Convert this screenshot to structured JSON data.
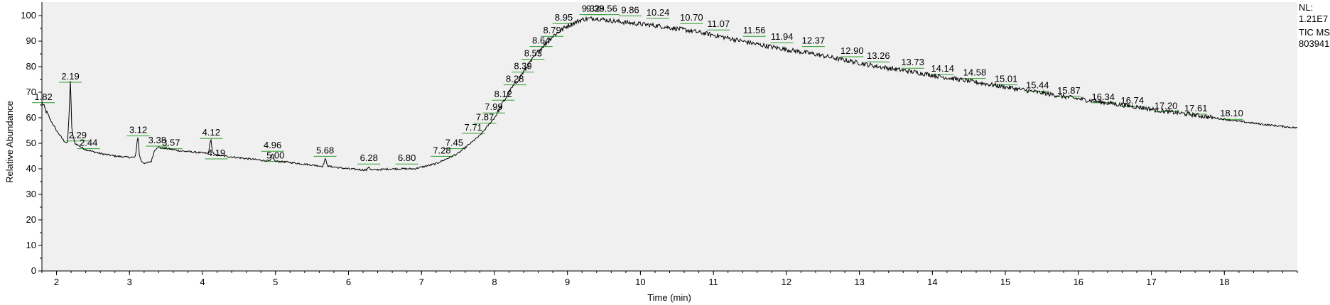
{
  "side_info": {
    "nl_label": "NL:",
    "nl_value": "1.21E7",
    "trace_label": "TIC  MS",
    "file_id": "803941"
  },
  "chart_data": {
    "type": "line",
    "xlabel": "Time (min)",
    "ylabel": "Relative Abundance",
    "xlim": [
      1.8,
      19.0
    ],
    "ylim": [
      0,
      100
    ],
    "x_ticks": [
      2,
      3,
      4,
      5,
      6,
      7,
      8,
      9,
      10,
      11,
      12,
      13,
      14,
      15,
      16,
      17,
      18
    ],
    "y_ticks": [
      0,
      10,
      20,
      30,
      40,
      50,
      60,
      70,
      80,
      90,
      100
    ],
    "grid": false,
    "colors": {
      "trace": "#000000",
      "peak_marker": "#2e9e2e",
      "plot_bg": "#f0f0f0"
    },
    "series": [
      {
        "x": [
          1.8,
          1.9,
          2.0,
          2.1,
          2.15,
          2.17,
          2.19,
          2.21,
          2.25,
          2.4,
          2.6,
          2.8,
          3.0,
          3.08,
          3.11,
          3.12,
          3.13,
          3.16,
          3.22,
          3.3,
          3.34,
          3.38,
          3.5,
          3.7,
          3.9,
          4.08,
          4.11,
          4.12,
          4.13,
          4.16,
          4.3,
          4.6,
          4.93,
          4.96,
          4.99,
          5.2,
          5.5,
          5.65,
          5.68,
          5.72,
          6.0,
          6.25,
          6.28,
          6.31,
          6.6,
          6.9,
          7.2,
          7.5,
          7.8,
          8.0,
          8.2,
          8.4,
          8.6,
          8.8,
          9.0,
          9.2,
          9.38,
          9.6,
          9.9,
          10.24,
          10.7,
          11.07,
          11.56,
          11.94,
          12.37,
          12.9,
          13.26,
          13.73,
          14.14,
          14.58,
          15.01,
          15.44,
          15.87,
          16.34,
          16.74,
          17.2,
          17.61,
          18.1,
          18.5,
          19.0
        ],
        "y": [
          66,
          60,
          55,
          51,
          50,
          60,
          75,
          55,
          50,
          47.5,
          46,
          45,
          44.5,
          44.5,
          52,
          53,
          46,
          43,
          42,
          43,
          47,
          48.5,
          48,
          47,
          46.5,
          46,
          51,
          52,
          47,
          45.5,
          45,
          44,
          43,
          46,
          43,
          42.5,
          41.5,
          41,
          44,
          41,
          40,
          39.5,
          41,
          39.5,
          40,
          40,
          42,
          46,
          53,
          60,
          70,
          78,
          86,
          92,
          96,
          98.5,
          99,
          98,
          97,
          96,
          94,
          92,
          89,
          87,
          85,
          82,
          80,
          78,
          76,
          74,
          72,
          70,
          68,
          66,
          64.5,
          62.5,
          61,
          59,
          57.5,
          56
        ]
      }
    ],
    "peak_labels": [
      {
        "rt": 1.82,
        "text": "1.82",
        "y": 67
      },
      {
        "rt": 2.19,
        "text": "2.19",
        "y": 75
      },
      {
        "rt": 2.29,
        "text": "2.29",
        "y": 52
      },
      {
        "rt": 2.44,
        "text": "2.44",
        "y": 49
      },
      {
        "rt": 3.12,
        "text": "3.12",
        "y": 54
      },
      {
        "rt": 3.38,
        "text": "3.38",
        "y": 50
      },
      {
        "rt": 3.57,
        "text": "3.57",
        "y": 49
      },
      {
        "rt": 4.12,
        "text": "4.12",
        "y": 53
      },
      {
        "rt": 4.19,
        "text": "4.19",
        "y": 45
      },
      {
        "rt": 4.96,
        "text": "4.96",
        "y": 48
      },
      {
        "rt": 5.0,
        "text": "5.00",
        "y": 44
      },
      {
        "rt": 5.68,
        "text": "5.68",
        "y": 46
      },
      {
        "rt": 6.28,
        "text": "6.28",
        "y": 43
      },
      {
        "rt": 6.8,
        "text": "6.80",
        "y": 43
      },
      {
        "rt": 7.28,
        "text": "7.28",
        "y": 46
      },
      {
        "rt": 7.45,
        "text": "7.45",
        "y": 49
      },
      {
        "rt": 7.71,
        "text": "7.71",
        "y": 55
      },
      {
        "rt": 7.87,
        "text": "7.87",
        "y": 59
      },
      {
        "rt": 7.99,
        "text": "7.99",
        "y": 63
      },
      {
        "rt": 8.12,
        "text": "8.12",
        "y": 68
      },
      {
        "rt": 8.28,
        "text": "8.28",
        "y": 74
      },
      {
        "rt": 8.39,
        "text": "8.39",
        "y": 79
      },
      {
        "rt": 8.53,
        "text": "8.53",
        "y": 84
      },
      {
        "rt": 8.64,
        "text": "8.64",
        "y": 89
      },
      {
        "rt": 8.79,
        "text": "8.79",
        "y": 93
      },
      {
        "rt": 8.95,
        "text": "8.95",
        "y": 98
      },
      {
        "rt": 9.32,
        "text": "9.32",
        "y": 101.5
      },
      {
        "rt": 9.38,
        "text": "9.38",
        "y": 101.5
      },
      {
        "rt": 9.56,
        "text": "9.56",
        "y": 101.5
      },
      {
        "rt": 9.86,
        "text": "9.86",
        "y": 101
      },
      {
        "rt": 10.24,
        "text": "10.24",
        "y": 100
      },
      {
        "rt": 10.7,
        "text": "10.70",
        "y": 98
      },
      {
        "rt": 11.07,
        "text": "11.07",
        "y": 95.5
      },
      {
        "rt": 11.56,
        "text": "11.56",
        "y": 93
      },
      {
        "rt": 11.94,
        "text": "11.94",
        "y": 90.5
      },
      {
        "rt": 12.37,
        "text": "12.37",
        "y": 89
      },
      {
        "rt": 12.9,
        "text": "12.90",
        "y": 85
      },
      {
        "rt": 13.26,
        "text": "13.26",
        "y": 83
      },
      {
        "rt": 13.73,
        "text": "13.73",
        "y": 80.5
      },
      {
        "rt": 14.14,
        "text": "14.14",
        "y": 78
      },
      {
        "rt": 14.58,
        "text": "14.58",
        "y": 76.5
      },
      {
        "rt": 15.01,
        "text": "15.01",
        "y": 74
      },
      {
        "rt": 15.44,
        "text": "15.44",
        "y": 71.5
      },
      {
        "rt": 15.87,
        "text": "15.87",
        "y": 69.5
      },
      {
        "rt": 16.34,
        "text": "16.34",
        "y": 67
      },
      {
        "rt": 16.74,
        "text": "16.74",
        "y": 65.5
      },
      {
        "rt": 17.2,
        "text": "17.20",
        "y": 63.5
      },
      {
        "rt": 17.61,
        "text": "17.61",
        "y": 62.5
      },
      {
        "rt": 18.1,
        "text": "18.10",
        "y": 60.5
      }
    ]
  }
}
